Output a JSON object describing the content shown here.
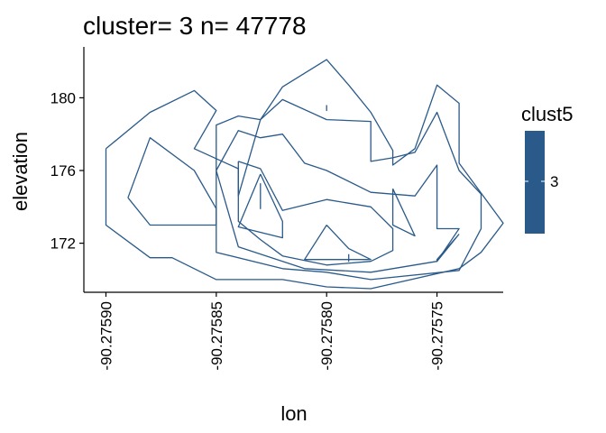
{
  "chart_data": {
    "type": "contour",
    "title": "cluster= 3 n= 47778",
    "xlabel": "lon",
    "ylabel": "elevation",
    "xlim": [
      -90.27591,
      -90.27572
    ],
    "ylim": [
      169.3,
      182.8
    ],
    "x_ticks": [
      -90.2759,
      -90.27585,
      -90.2758,
      -90.27575
    ],
    "x_tick_labels": [
      "-90.27590",
      "-90.27585",
      "-90.27580",
      "-90.27575"
    ],
    "y_ticks": [
      172,
      176,
      180
    ],
    "y_tick_labels": [
      "172",
      "176",
      "180"
    ],
    "legend": {
      "title": "clust5",
      "entries": [
        {
          "label": "3",
          "color": "#2a5a8a"
        }
      ]
    },
    "contours": [
      {
        "level": 1,
        "points": [
          [
            -90.2759,
            177.2
          ],
          [
            -90.27588,
            179.2
          ],
          [
            -90.27586,
            180.4
          ],
          [
            -90.27585,
            179.3
          ],
          [
            -90.27586,
            177.2
          ],
          [
            -90.27584,
            176.1
          ],
          [
            -90.27584,
            175.2
          ],
          [
            -90.27584,
            174.6
          ],
          [
            -90.27583,
            178.8
          ],
          [
            -90.27582,
            180.6
          ],
          [
            -90.2758,
            182.1
          ],
          [
            -90.27579,
            180.7
          ],
          [
            -90.27578,
            179.2
          ],
          [
            -90.27577,
            177.1
          ],
          [
            -90.27577,
            176.3
          ],
          [
            -90.27576,
            177.2
          ],
          [
            -90.27575,
            180.7
          ],
          [
            -90.27574,
            179.7
          ],
          [
            -90.27574,
            176.4
          ],
          [
            -90.27572,
            173.1
          ],
          [
            -90.27573,
            171.5
          ],
          [
            -90.27574,
            170.6
          ],
          [
            -90.27578,
            169.5
          ],
          [
            -90.2758,
            169.6
          ],
          [
            -90.27582,
            170.0
          ],
          [
            -90.27585,
            170.0
          ],
          [
            -90.27587,
            171.2
          ],
          [
            -90.27588,
            171.2
          ],
          [
            -90.2759,
            173.0
          ],
          [
            -90.2759,
            175.0
          ],
          [
            -90.2759,
            177.2
          ]
        ]
      },
      {
        "level": 2,
        "points": [
          [
            -90.27589,
            174.5
          ],
          [
            -90.27588,
            177.8
          ],
          [
            -90.27586,
            176.0
          ],
          [
            -90.27585,
            173.9
          ],
          [
            -90.27585,
            173.0
          ],
          [
            -90.27588,
            173.0
          ],
          [
            -90.27589,
            174.5
          ]
        ]
      },
      {
        "level": 2,
        "points": [
          [
            -90.27585,
            173.0
          ],
          [
            -90.27585,
            178.5
          ],
          [
            -90.27584,
            179.0
          ],
          [
            -90.27583,
            178.8
          ],
          [
            -90.27582,
            179.9
          ],
          [
            -90.2758,
            178.8
          ],
          [
            -90.27578,
            178.7
          ],
          [
            -90.27578,
            176.5
          ],
          [
            -90.27577,
            176.7
          ],
          [
            -90.27576,
            177.0
          ],
          [
            -90.27575,
            179.2
          ],
          [
            -90.27574,
            176.0
          ],
          [
            -90.27573,
            174.7
          ],
          [
            -90.27573,
            172.8
          ],
          [
            -90.27574,
            170.5
          ],
          [
            -90.27578,
            170.0
          ],
          [
            -90.2758,
            170.4
          ],
          [
            -90.27582,
            170.6
          ],
          [
            -90.27585,
            171.5
          ],
          [
            -90.27585,
            173.0
          ]
        ]
      },
      {
        "level": 3,
        "points": [
          [
            -90.27585,
            176.0
          ],
          [
            -90.27584,
            178.2
          ],
          [
            -90.27583,
            177.8
          ],
          [
            -90.27582,
            178.0
          ],
          [
            -90.27581,
            176.4
          ],
          [
            -90.2758,
            176.0
          ],
          [
            -90.27578,
            174.8
          ],
          [
            -90.27576,
            174.6
          ],
          [
            -90.27575,
            176.3
          ],
          [
            -90.27575,
            172.8
          ],
          [
            -90.27574,
            172.8
          ],
          [
            -90.27575,
            171.0
          ],
          [
            -90.27578,
            170.4
          ],
          [
            -90.27581,
            170.6
          ],
          [
            -90.27584,
            171.8
          ],
          [
            -90.27585,
            176.0
          ]
        ]
      },
      {
        "level": 4,
        "points": [
          [
            -90.27584,
            176.5
          ],
          [
            -90.27583,
            176.1
          ],
          [
            -90.27582,
            173.8
          ],
          [
            -90.2758,
            174.4
          ],
          [
            -90.27578,
            174.0
          ],
          [
            -90.27577,
            172.8
          ],
          [
            -90.27577,
            171.6
          ],
          [
            -90.27578,
            171.0
          ],
          [
            -90.2758,
            170.8
          ],
          [
            -90.27582,
            171.3
          ],
          [
            -90.27583,
            172.2
          ],
          [
            -90.27584,
            173.2
          ],
          [
            -90.27584,
            176.5
          ]
        ]
      },
      {
        "level": 5,
        "points": [
          [
            -90.27583,
            175.8
          ],
          [
            -90.27582,
            173.2
          ],
          [
            -90.27582,
            172.3
          ],
          [
            -90.27584,
            172.9
          ],
          [
            -90.27583,
            175.8
          ]
        ]
      },
      {
        "level": 5,
        "points": [
          [
            -90.2758,
            173.0
          ],
          [
            -90.27579,
            171.7
          ],
          [
            -90.27578,
            171.1
          ],
          [
            -90.27581,
            171.1
          ],
          [
            -90.2758,
            173.0
          ]
        ]
      },
      {
        "level": 6,
        "points": [
          [
            -90.27583,
            175.3
          ],
          [
            -90.27583,
            174.3
          ],
          [
            -90.27583,
            173.9
          ],
          [
            -90.27583,
            174.4
          ],
          [
            -90.27583,
            175.3
          ]
        ]
      },
      {
        "level": 6,
        "points": [
          [
            -90.27579,
            171.4
          ],
          [
            -90.27579,
            171.1
          ],
          [
            -90.27579,
            171.0
          ],
          [
            -90.27579,
            171.4
          ]
        ]
      },
      {
        "level": 3,
        "points": [
          [
            -90.27577,
            175.0
          ],
          [
            -90.27577,
            173.0
          ],
          [
            -90.27576,
            172.4
          ],
          [
            -90.27577,
            175.0
          ]
        ]
      },
      {
        "level": 3,
        "points": [
          [
            -90.27574,
            172.5
          ],
          [
            -90.27575,
            171.1
          ],
          [
            -90.27575,
            171.0
          ],
          [
            -90.27574,
            172.5
          ]
        ]
      },
      {
        "level": 6,
        "points": [
          [
            -90.2758,
            179.6
          ],
          [
            -90.2758,
            179.3
          ],
          [
            -90.2758,
            179.5
          ],
          [
            -90.2758,
            179.6
          ]
        ]
      }
    ]
  }
}
